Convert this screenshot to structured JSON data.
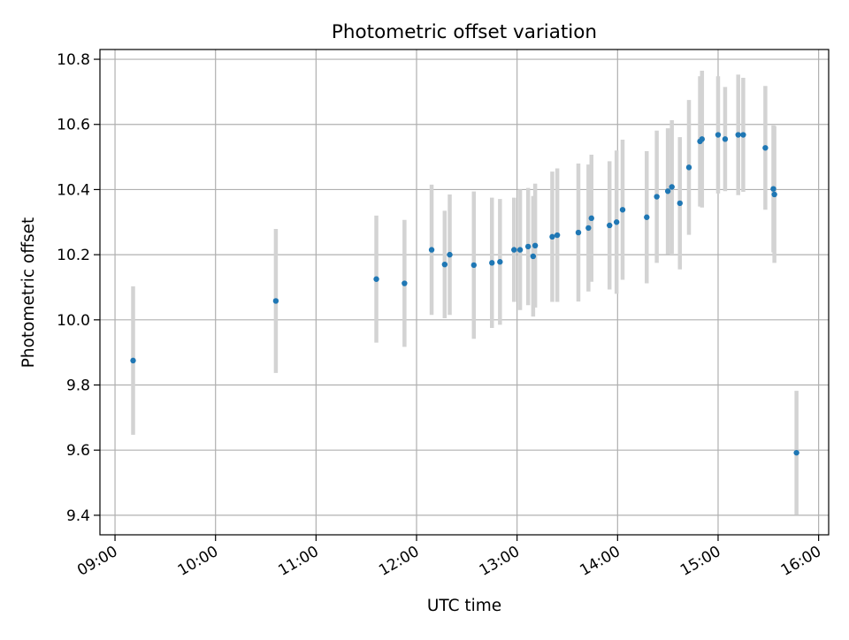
{
  "chart_data": {
    "type": "scatter",
    "title": "Photometric offset variation",
    "xlabel": "UTC time",
    "ylabel": "Photometric offset",
    "x_unit": "hours UTC",
    "xlim": [
      8.85,
      16.1
    ],
    "ylim": [
      9.34,
      10.83
    ],
    "x_ticks": [
      9,
      10,
      11,
      12,
      13,
      14,
      15,
      16
    ],
    "x_tick_labels": [
      "09:00",
      "10:00",
      "11:00",
      "12:00",
      "13:00",
      "14:00",
      "15:00",
      "16:00"
    ],
    "y_ticks": [
      9.4,
      9.6,
      9.8,
      10.0,
      10.2,
      10.4,
      10.6,
      10.8
    ],
    "y_tick_labels": [
      "9.4",
      "9.6",
      "9.8",
      "10.0",
      "10.2",
      "10.4",
      "10.6",
      "10.8"
    ],
    "grid": true,
    "legend": false,
    "point_color": "#1f77b4",
    "error_bar_color": "#d3d3d3",
    "series": [
      {
        "points": [
          {
            "x": 9.18,
            "y": 9.875,
            "err": 0.228
          },
          {
            "x": 10.6,
            "y": 10.058,
            "err": 0.221
          },
          {
            "x": 11.6,
            "y": 10.125,
            "err": 0.195
          },
          {
            "x": 11.88,
            "y": 10.112,
            "err": 0.195
          },
          {
            "x": 12.15,
            "y": 10.215,
            "err": 0.2
          },
          {
            "x": 12.28,
            "y": 10.17,
            "err": 0.165
          },
          {
            "x": 12.33,
            "y": 10.2,
            "err": 0.185
          },
          {
            "x": 12.57,
            "y": 10.168,
            "err": 0.226
          },
          {
            "x": 12.75,
            "y": 10.175,
            "err": 0.2
          },
          {
            "x": 12.83,
            "y": 10.178,
            "err": 0.193
          },
          {
            "x": 12.97,
            "y": 10.215,
            "err": 0.16
          },
          {
            "x": 13.03,
            "y": 10.215,
            "err": 0.185
          },
          {
            "x": 13.11,
            "y": 10.225,
            "err": 0.18
          },
          {
            "x": 13.16,
            "y": 10.195,
            "err": 0.185
          },
          {
            "x": 13.18,
            "y": 10.228,
            "err": 0.19
          },
          {
            "x": 13.35,
            "y": 10.255,
            "err": 0.2
          },
          {
            "x": 13.4,
            "y": 10.26,
            "err": 0.205
          },
          {
            "x": 13.61,
            "y": 10.268,
            "err": 0.212
          },
          {
            "x": 13.71,
            "y": 10.282,
            "err": 0.195
          },
          {
            "x": 13.74,
            "y": 10.312,
            "err": 0.195
          },
          {
            "x": 13.92,
            "y": 10.29,
            "err": 0.197
          },
          {
            "x": 13.99,
            "y": 10.3,
            "err": 0.22
          },
          {
            "x": 14.05,
            "y": 10.338,
            "err": 0.215
          },
          {
            "x": 14.29,
            "y": 10.315,
            "err": 0.203
          },
          {
            "x": 14.39,
            "y": 10.378,
            "err": 0.203
          },
          {
            "x": 14.5,
            "y": 10.395,
            "err": 0.193
          },
          {
            "x": 14.54,
            "y": 10.408,
            "err": 0.205
          },
          {
            "x": 14.62,
            "y": 10.358,
            "err": 0.203
          },
          {
            "x": 14.71,
            "y": 10.468,
            "err": 0.207
          },
          {
            "x": 14.82,
            "y": 10.548,
            "err": 0.2
          },
          {
            "x": 14.84,
            "y": 10.555,
            "err": 0.21
          },
          {
            "x": 15.0,
            "y": 10.568,
            "err": 0.18
          },
          {
            "x": 15.07,
            "y": 10.555,
            "err": 0.16
          },
          {
            "x": 15.2,
            "y": 10.568,
            "err": 0.185
          },
          {
            "x": 15.25,
            "y": 10.568,
            "err": 0.175
          },
          {
            "x": 15.47,
            "y": 10.528,
            "err": 0.19
          },
          {
            "x": 15.55,
            "y": 10.402,
            "err": 0.195
          },
          {
            "x": 15.56,
            "y": 10.385,
            "err": 0.21
          },
          {
            "x": 15.78,
            "y": 9.592,
            "err": 0.19
          }
        ]
      }
    ]
  }
}
